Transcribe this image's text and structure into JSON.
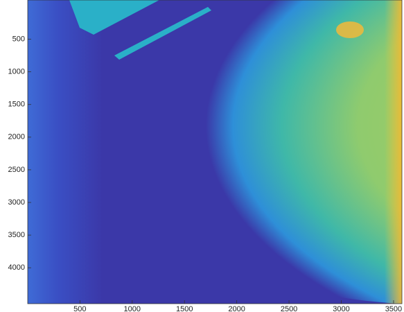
{
  "chart_data": {
    "type": "image",
    "xlim": [
      0.5,
      3580
    ],
    "xticks": [
      500,
      1000,
      1500,
      2000,
      2500,
      3000,
      3500
    ],
    "ylim": [
      -100,
      4550
    ],
    "yticks": [
      500,
      1000,
      1500,
      2000,
      2500,
      3000,
      3500,
      4000
    ],
    "colormap": "parula"
  }
}
